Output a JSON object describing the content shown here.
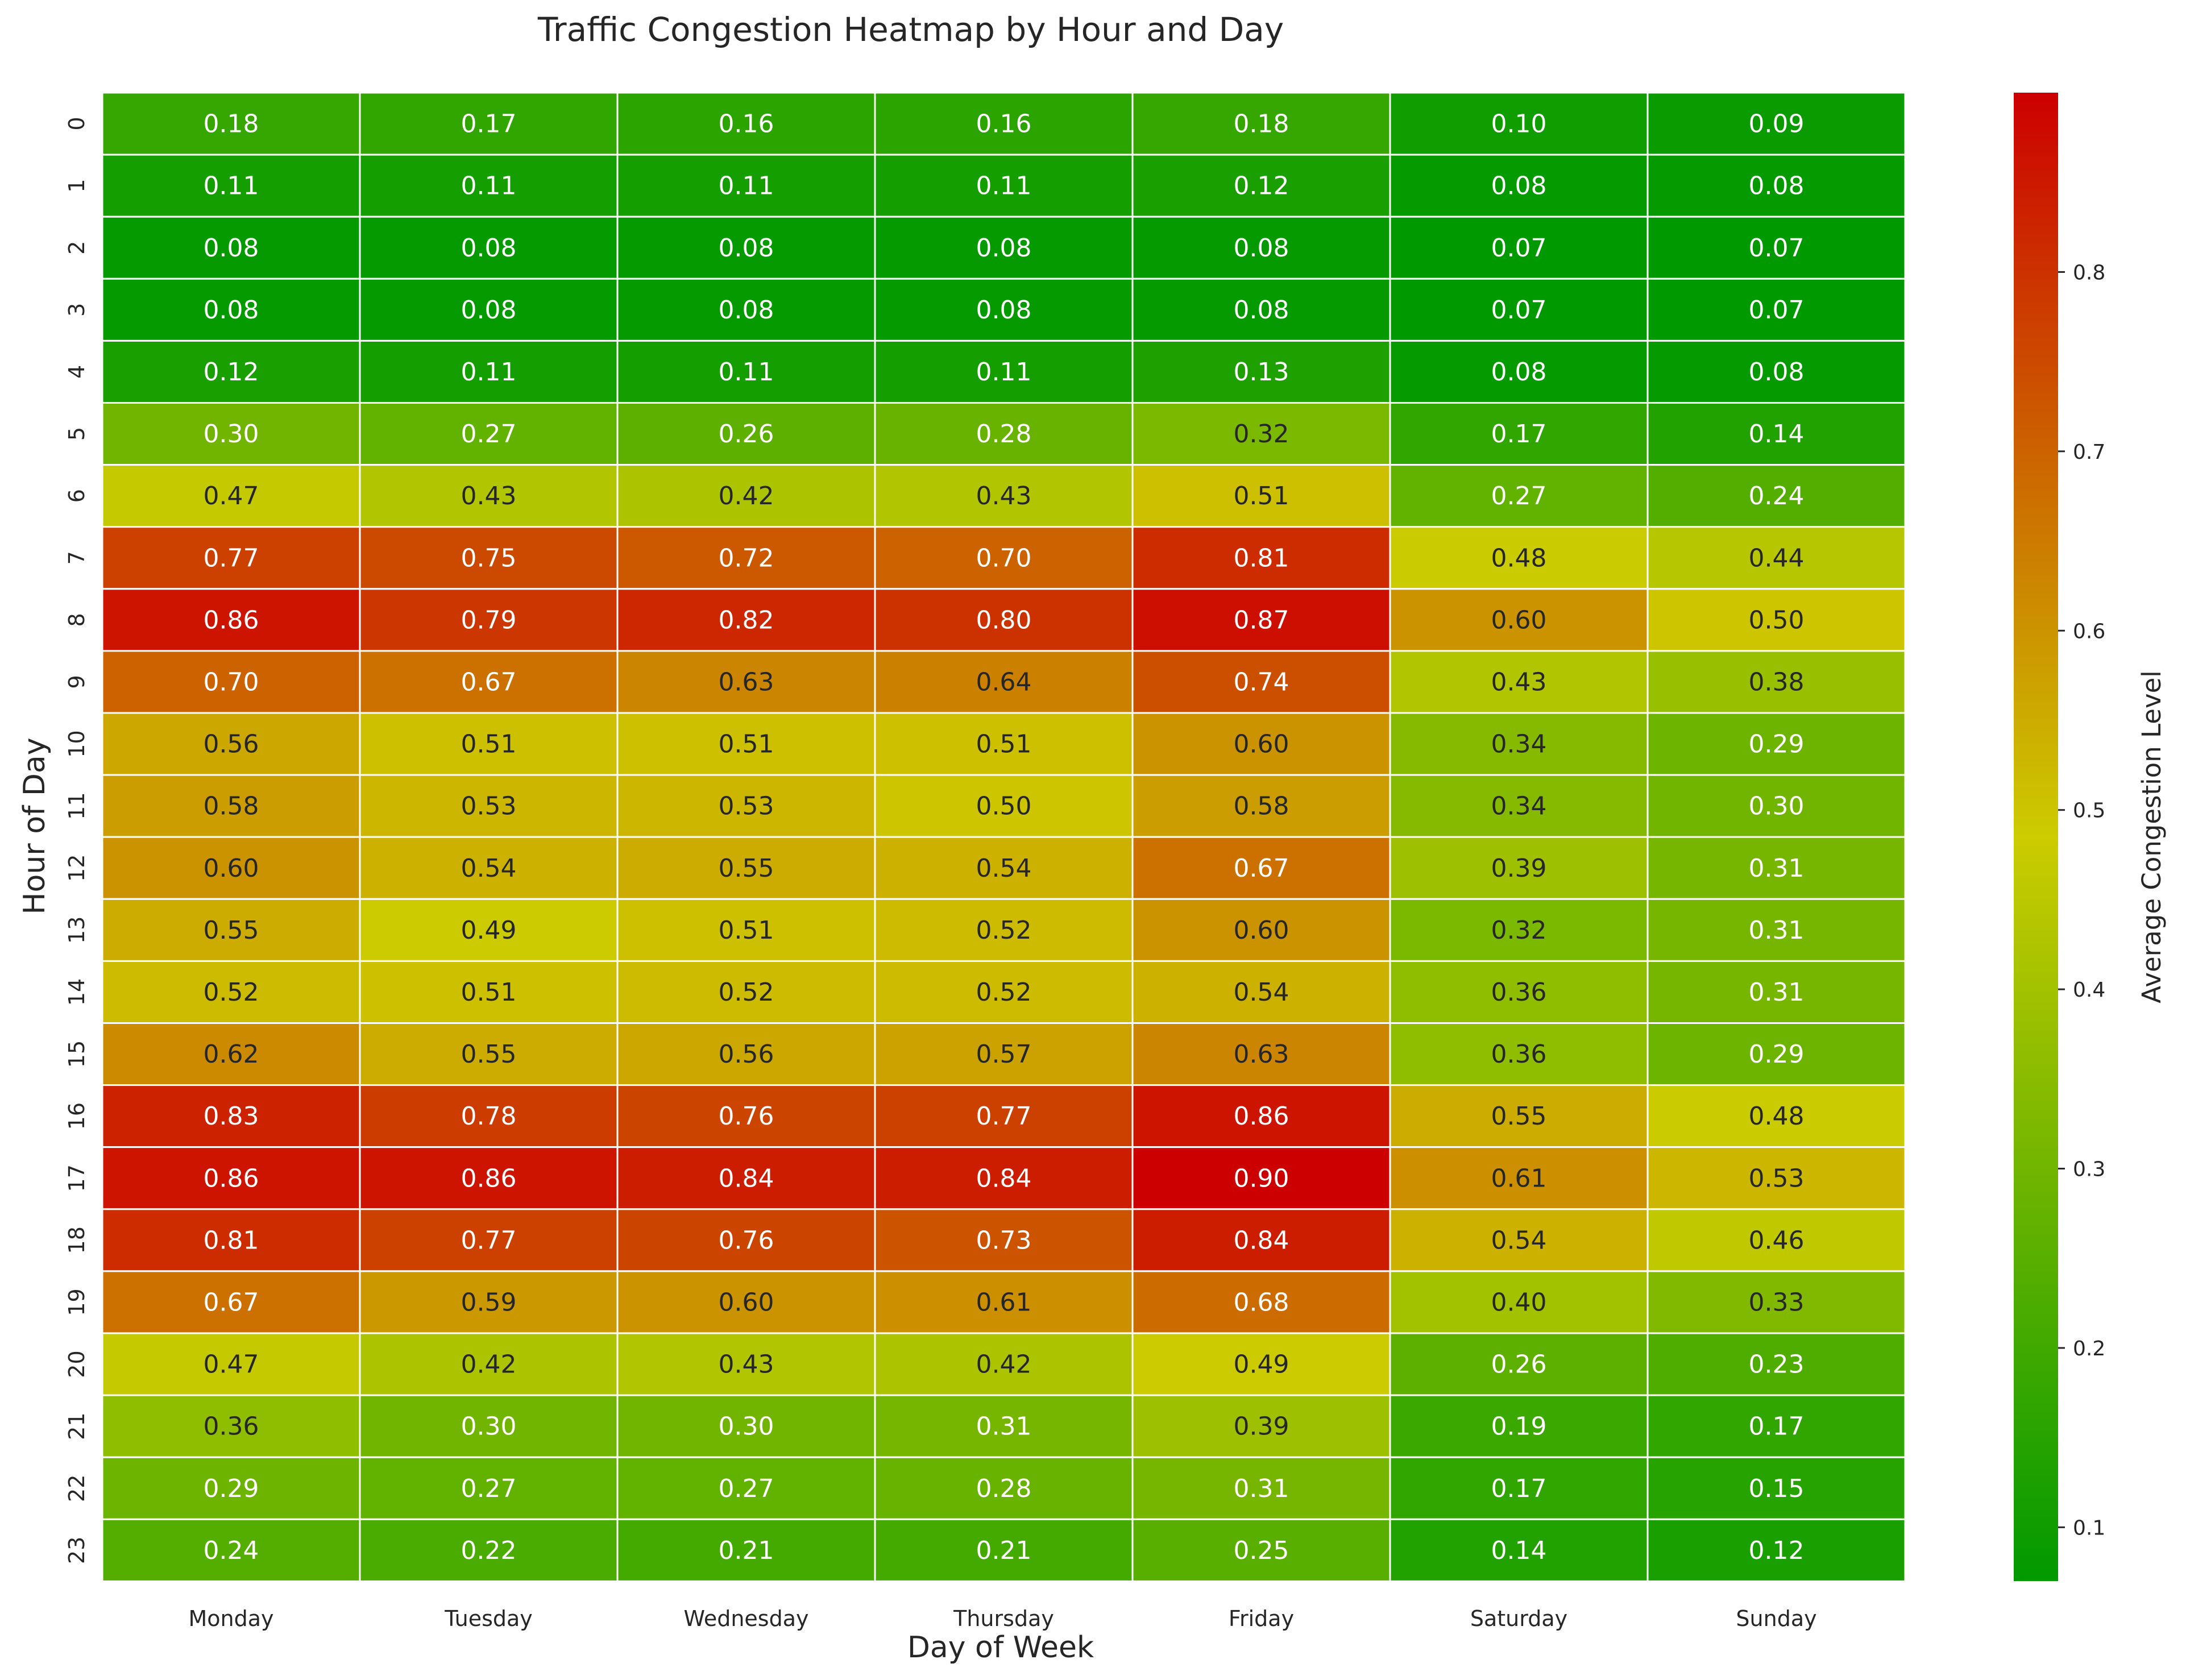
{
  "chart_data": {
    "type": "heatmap",
    "title": "Traffic Congestion Heatmap by Hour and Day",
    "xlabel": "Day of Week",
    "ylabel": "Hour of Day",
    "x_categories": [
      "Monday",
      "Tuesday",
      "Wednesday",
      "Thursday",
      "Friday",
      "Saturday",
      "Sunday"
    ],
    "y_categories": [
      "0",
      "1",
      "2",
      "3",
      "4",
      "5",
      "6",
      "7",
      "8",
      "9",
      "10",
      "11",
      "12",
      "13",
      "14",
      "15",
      "16",
      "17",
      "18",
      "19",
      "20",
      "21",
      "22",
      "23"
    ],
    "values": [
      [
        0.18,
        0.17,
        0.16,
        0.16,
        0.18,
        0.1,
        0.09
      ],
      [
        0.11,
        0.11,
        0.11,
        0.11,
        0.12,
        0.08,
        0.08
      ],
      [
        0.08,
        0.08,
        0.08,
        0.08,
        0.08,
        0.07,
        0.07
      ],
      [
        0.08,
        0.08,
        0.08,
        0.08,
        0.08,
        0.07,
        0.07
      ],
      [
        0.12,
        0.11,
        0.11,
        0.11,
        0.13,
        0.08,
        0.08
      ],
      [
        0.3,
        0.27,
        0.26,
        0.28,
        0.32,
        0.17,
        0.14
      ],
      [
        0.47,
        0.43,
        0.42,
        0.43,
        0.51,
        0.27,
        0.24
      ],
      [
        0.77,
        0.75,
        0.72,
        0.7,
        0.81,
        0.48,
        0.44
      ],
      [
        0.86,
        0.79,
        0.82,
        0.8,
        0.87,
        0.6,
        0.5
      ],
      [
        0.7,
        0.67,
        0.63,
        0.64,
        0.74,
        0.43,
        0.38
      ],
      [
        0.56,
        0.51,
        0.51,
        0.51,
        0.6,
        0.34,
        0.29
      ],
      [
        0.58,
        0.53,
        0.53,
        0.5,
        0.58,
        0.34,
        0.3
      ],
      [
        0.6,
        0.54,
        0.55,
        0.54,
        0.67,
        0.39,
        0.31
      ],
      [
        0.55,
        0.49,
        0.51,
        0.52,
        0.6,
        0.32,
        0.31
      ],
      [
        0.52,
        0.51,
        0.52,
        0.52,
        0.54,
        0.36,
        0.31
      ],
      [
        0.62,
        0.55,
        0.56,
        0.57,
        0.63,
        0.36,
        0.29
      ],
      [
        0.83,
        0.78,
        0.76,
        0.77,
        0.86,
        0.55,
        0.48
      ],
      [
        0.86,
        0.86,
        0.84,
        0.84,
        0.9,
        0.61,
        0.53
      ],
      [
        0.81,
        0.77,
        0.76,
        0.73,
        0.84,
        0.54,
        0.46
      ],
      [
        0.67,
        0.59,
        0.6,
        0.61,
        0.68,
        0.4,
        0.33
      ],
      [
        0.47,
        0.42,
        0.43,
        0.42,
        0.49,
        0.26,
        0.23
      ],
      [
        0.36,
        0.3,
        0.3,
        0.31,
        0.39,
        0.19,
        0.17
      ],
      [
        0.29,
        0.27,
        0.27,
        0.28,
        0.31,
        0.17,
        0.15
      ],
      [
        0.24,
        0.22,
        0.21,
        0.21,
        0.25,
        0.14,
        0.12
      ]
    ],
    "value_format": "0.00",
    "colormap": [
      "#009900",
      "#cccc00",
      "#cc0000"
    ],
    "vmin": 0.07,
    "vmax": 0.9,
    "cell_border_color": "#ffffff",
    "colorbar": {
      "label": "Average Congestion Level",
      "ticks": [
        "0.1",
        "0.2",
        "0.3",
        "0.4",
        "0.5",
        "0.6",
        "0.7",
        "0.8"
      ],
      "placement": "right"
    },
    "grid": false
  }
}
